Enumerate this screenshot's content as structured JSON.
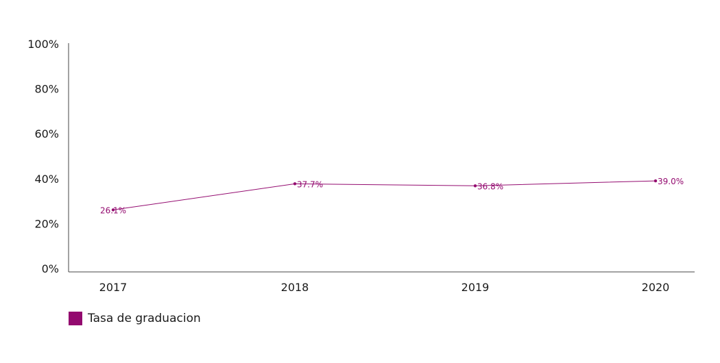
{
  "chart_data": {
    "type": "line",
    "x": [
      "2017",
      "2018",
      "2019",
      "2020"
    ],
    "series": [
      {
        "name": "Tasa de graduacion",
        "values": [
          26.1,
          37.7,
          36.8,
          39.0
        ],
        "labels": [
          "26.1%",
          "37.7%",
          "36.8%",
          "39.0%"
        ]
      }
    ],
    "yticks": [
      "0%",
      "20%",
      "40%",
      "60%",
      "80%",
      "100%"
    ],
    "ylim": [
      0,
      100
    ],
    "grid": false,
    "legend_position": "bottom-left",
    "colors": {
      "series": "#930a6f",
      "axis": "#444444"
    }
  }
}
